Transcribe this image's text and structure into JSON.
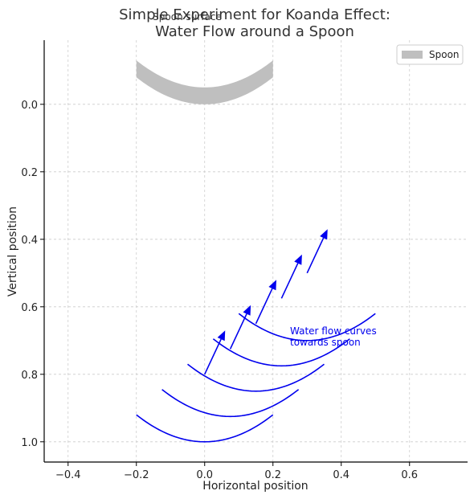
{
  "chart_data": {
    "type": "line",
    "title_line1": "Simple Experiment for Koanda Effect:",
    "title_line2": "Water Flow around a Spoon",
    "xlabel": "Horizontal position",
    "ylabel": "Vertical position",
    "xlim": [
      -0.47,
      0.77
    ],
    "ylim": [
      1.06,
      -0.19
    ],
    "y_inverted": true,
    "grid": true,
    "xticks": [
      -0.4,
      -0.2,
      0.0,
      0.2,
      0.4,
      0.6
    ],
    "xtick_labels": [
      "−0.4",
      "−0.2",
      "0.0",
      "0.2",
      "0.4",
      "0.6"
    ],
    "yticks": [
      0.0,
      0.2,
      0.4,
      0.6,
      0.8,
      1.0
    ],
    "ytick_labels": [
      "0.0",
      "0.2",
      "0.4",
      "0.6",
      "0.8",
      "1.0"
    ],
    "spoon": {
      "name": "Spoon",
      "label": "Spoon surface",
      "color": "#bfbfbf",
      "x_range": [
        -0.2,
        0.2
      ],
      "upper_center": -0.05,
      "upper_edge": -0.13,
      "thickness": 0.05
    },
    "series": [
      {
        "x_range": [
          -0.2,
          0.2
        ],
        "center_x": 0.0,
        "center_y": 1.0,
        "end_y": 0.92
      },
      {
        "x_range": [
          -0.125,
          0.275
        ],
        "center_x": 0.075,
        "center_y": 0.925,
        "end_y": 0.845
      },
      {
        "x_range": [
          -0.05,
          0.35
        ],
        "center_x": 0.15,
        "center_y": 0.85,
        "end_y": 0.77
      },
      {
        "x_range": [
          0.025,
          0.425
        ],
        "center_x": 0.225,
        "center_y": 0.775,
        "end_y": 0.695
      },
      {
        "x_range": [
          0.1,
          0.5
        ],
        "center_x": 0.3,
        "center_y": 0.7,
        "end_y": 0.62
      }
    ],
    "arrows": [
      {
        "x": 0.0,
        "y": 0.8,
        "dx": 0.06,
        "dy": -0.13
      },
      {
        "x": 0.075,
        "y": 0.725,
        "dx": 0.06,
        "dy": -0.13
      },
      {
        "x": 0.15,
        "y": 0.65,
        "dx": 0.06,
        "dy": -0.13
      },
      {
        "x": 0.225,
        "y": 0.575,
        "dx": 0.06,
        "dy": -0.13
      },
      {
        "x": 0.3,
        "y": 0.5,
        "dx": 0.06,
        "dy": -0.13
      }
    ],
    "line_color": "#0000ee",
    "annotation": {
      "line1": "Water flow curves",
      "line2": "towards spoon",
      "x": 0.25,
      "y": 0.67
    },
    "legend": {
      "entry": "Spoon",
      "placement": "top-right"
    }
  }
}
